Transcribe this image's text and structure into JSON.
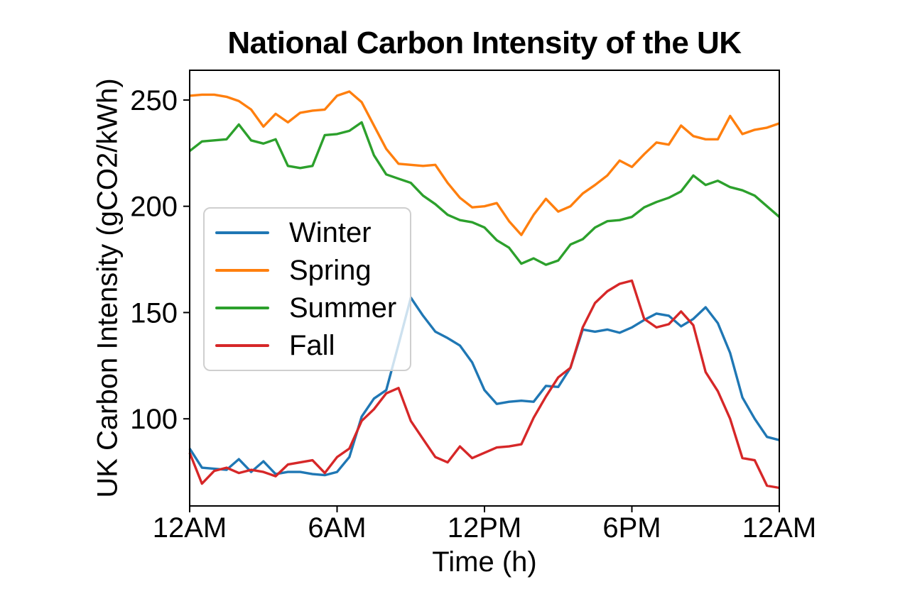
{
  "chart_data": {
    "type": "line",
    "title": "National Carbon Intensity of the UK",
    "xlabel": "Time (h)",
    "ylabel": "UK Carbon Intensity (gCO2/kWh)",
    "grid": false,
    "legend_position": "middle-left",
    "xlim": [
      0,
      24
    ],
    "ylim": [
      59,
      264
    ],
    "x_ticks": [
      {
        "value": 0,
        "label": "12AM"
      },
      {
        "value": 6,
        "label": "6AM"
      },
      {
        "value": 12,
        "label": "12PM"
      },
      {
        "value": 18,
        "label": "6PM"
      },
      {
        "value": 24,
        "label": "12AM"
      }
    ],
    "y_ticks": [
      {
        "value": 100,
        "label": "100"
      },
      {
        "value": 150,
        "label": "150"
      },
      {
        "value": 200,
        "label": "200"
      },
      {
        "value": 250,
        "label": "250"
      }
    ],
    "x": [
      0,
      0.5,
      1,
      1.5,
      2,
      2.5,
      3,
      3.5,
      4,
      4.5,
      5,
      5.5,
      6,
      6.5,
      7,
      7.5,
      8,
      8.5,
      9,
      9.5,
      10,
      10.5,
      11,
      11.5,
      12,
      12.5,
      13,
      13.5,
      14,
      14.5,
      15,
      15.5,
      16,
      16.5,
      17,
      17.5,
      18,
      18.5,
      19,
      19.5,
      20,
      20.5,
      21,
      21.5,
      22,
      22.5,
      23,
      23.5,
      24
    ],
    "series": [
      {
        "name": "Winter",
        "color": "#1f77b4",
        "values": [
          86,
          77,
          76.5,
          76,
          81,
          75,
          80,
          74,
          75,
          75,
          74,
          73.5,
          75,
          82,
          101,
          109.5,
          113.5,
          135,
          157,
          148.5,
          141,
          138,
          134.5,
          126.5,
          113.5,
          107,
          108,
          108.5,
          108,
          115.5,
          115,
          124,
          142,
          141,
          142,
          140.5,
          143,
          146.5,
          149.5,
          148.5,
          143.5,
          147,
          152.5,
          145,
          131,
          110,
          100,
          91.5,
          90
        ]
      },
      {
        "name": "Spring",
        "color": "#ff7f0e",
        "values": [
          252,
          252.5,
          252.5,
          251.5,
          249.5,
          245.5,
          237.5,
          243.5,
          239.5,
          244,
          245,
          245.5,
          252,
          254,
          249,
          238,
          227,
          220,
          219.5,
          219,
          219.5,
          211,
          204,
          199.5,
          200,
          201.5,
          193,
          186.5,
          196,
          203.5,
          197.5,
          200,
          206,
          210,
          214.5,
          221.5,
          218.5,
          224.5,
          230,
          229,
          238,
          233,
          231.5,
          231.5,
          242.5,
          234,
          236,
          237,
          239
        ]
      },
      {
        "name": "Summer",
        "color": "#2ca02c",
        "values": [
          226,
          230.5,
          231,
          231.5,
          238.5,
          231,
          229.5,
          231.5,
          219,
          218,
          219,
          233.5,
          234,
          235.5,
          239.5,
          224,
          215,
          213,
          211,
          205,
          201,
          196,
          193.5,
          192.5,
          190,
          184,
          180.5,
          173,
          175.5,
          172.5,
          174.5,
          182,
          184.5,
          190,
          193,
          193.5,
          195,
          199.5,
          202,
          204,
          207,
          214.5,
          210,
          212,
          209,
          207.5,
          205,
          200,
          195
        ]
      },
      {
        "name": "Fall",
        "color": "#d62728",
        "values": [
          84,
          69.5,
          75.5,
          77,
          74.5,
          76,
          75,
          73,
          78.5,
          79.5,
          80.5,
          74.5,
          82,
          86,
          99,
          104.5,
          112,
          114.5,
          99,
          90.5,
          82,
          79.5,
          87,
          81.5,
          84,
          86.5,
          87,
          88,
          100.5,
          110.5,
          119.5,
          124,
          143,
          154.5,
          160,
          163.5,
          165,
          147,
          143,
          144.5,
          150.5,
          144,
          122,
          113,
          100,
          81.5,
          80.5,
          68.5,
          67.5
        ]
      }
    ]
  }
}
